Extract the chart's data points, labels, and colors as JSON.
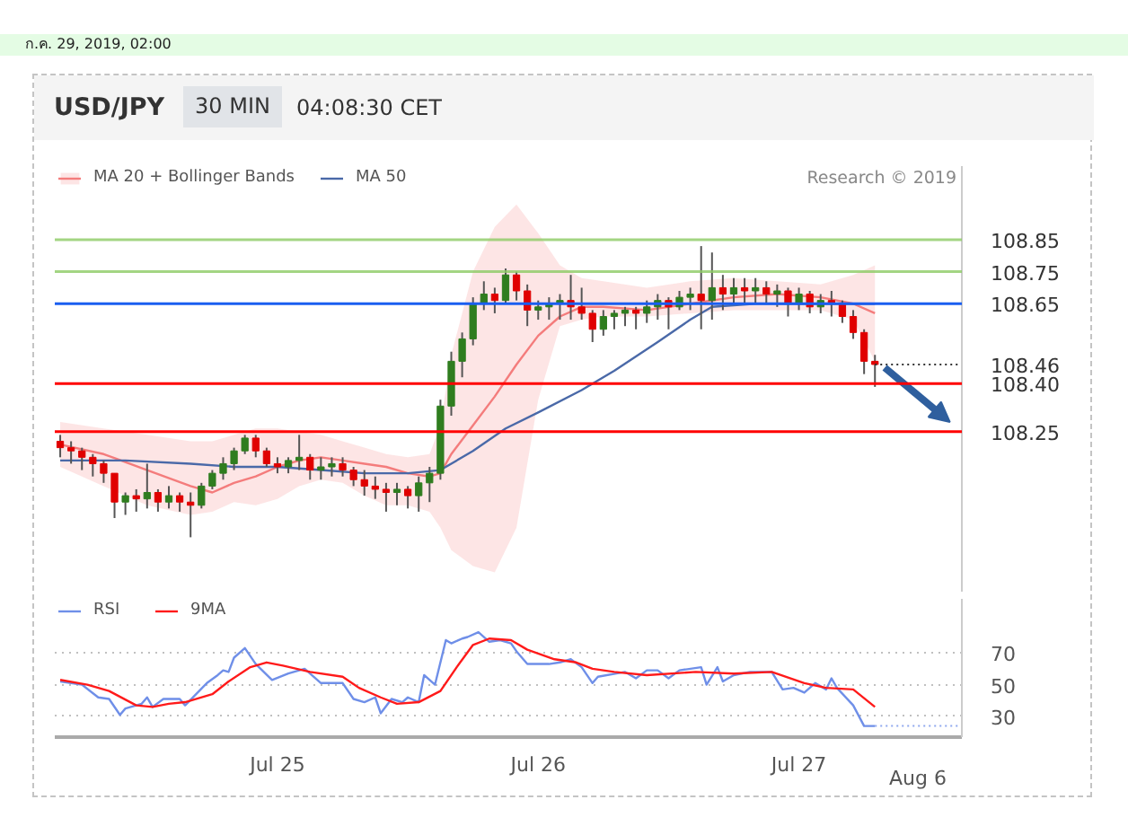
{
  "chart_data": [
    {
      "type": "candlestick",
      "title": "USD/JPY",
      "subtitle": "30 MIN",
      "annotations": [
        "04:08:30 CET",
        "ก.ค. 29, 2019, 02:00",
        "Research © 2019"
      ],
      "x": [
        "2019-07-24T04:00",
        "2019-07-24T05:00",
        "2019-07-24T06:00",
        "2019-07-24T07:00",
        "2019-07-24T08:00",
        "2019-07-24T09:00",
        "2019-07-24T10:00",
        "2019-07-24T11:00",
        "2019-07-24T12:00",
        "2019-07-24T13:00",
        "2019-07-24T14:00",
        "2019-07-24T15:00",
        "2019-07-24T16:00",
        "2019-07-24T17:00",
        "2019-07-24T18:00",
        "2019-07-24T19:00",
        "2019-07-24T20:00",
        "2019-07-24T21:00",
        "2019-07-24T22:00",
        "2019-07-24T23:00",
        "2019-07-25T00:00",
        "2019-07-25T01:00",
        "2019-07-25T02:00",
        "2019-07-25T03:00",
        "2019-07-25T04:00",
        "2019-07-25T05:00",
        "2019-07-25T06:00",
        "2019-07-25T07:00",
        "2019-07-25T08:00",
        "2019-07-25T09:00",
        "2019-07-25T10:00",
        "2019-07-25T11:00",
        "2019-07-25T12:00",
        "2019-07-25T13:00",
        "2019-07-25T14:00",
        "2019-07-25T15:00",
        "2019-07-25T16:00",
        "2019-07-25T17:00",
        "2019-07-25T18:00",
        "2019-07-25T19:00",
        "2019-07-25T20:00",
        "2019-07-25T21:00",
        "2019-07-25T22:00",
        "2019-07-25T23:00",
        "2019-07-26T00:00",
        "2019-07-26T01:00",
        "2019-07-26T02:00",
        "2019-07-26T03:00",
        "2019-07-26T04:00",
        "2019-07-26T05:00",
        "2019-07-26T06:00",
        "2019-07-26T07:00",
        "2019-07-26T08:00",
        "2019-07-26T09:00",
        "2019-07-26T10:00",
        "2019-07-26T11:00",
        "2019-07-26T12:00",
        "2019-07-26T13:00",
        "2019-07-26T14:00",
        "2019-07-26T15:00",
        "2019-07-26T16:00",
        "2019-07-26T17:00",
        "2019-07-26T18:00",
        "2019-07-26T19:00",
        "2019-07-26T20:00",
        "2019-07-26T21:00",
        "2019-07-26T22:00",
        "2019-07-26T23:00",
        "2019-07-27T00:00",
        "2019-07-27T01:00",
        "2019-07-27T02:00",
        "2019-07-27T03:00",
        "2019-07-27T04:00",
        "2019-07-27T05:00",
        "2019-07-27T06:00",
        "2019-07-27T07:00"
      ],
      "ohlc": [
        [
          108.22,
          108.24,
          108.17,
          108.2
        ],
        [
          108.2,
          108.22,
          108.15,
          108.19
        ],
        [
          108.19,
          108.2,
          108.13,
          108.17
        ],
        [
          108.17,
          108.18,
          108.11,
          108.15
        ],
        [
          108.15,
          108.16,
          108.09,
          108.12
        ],
        [
          108.12,
          108.12,
          107.98,
          108.03
        ],
        [
          108.03,
          108.06,
          107.99,
          108.05
        ],
        [
          108.05,
          108.07,
          108.0,
          108.04
        ],
        [
          108.04,
          108.15,
          108.01,
          108.06
        ],
        [
          108.06,
          108.07,
          108.0,
          108.03
        ],
        [
          108.03,
          108.08,
          108.01,
          108.05
        ],
        [
          108.05,
          108.06,
          108.0,
          108.03
        ],
        [
          108.03,
          108.06,
          107.92,
          108.02
        ],
        [
          108.02,
          108.09,
          108.01,
          108.08
        ],
        [
          108.08,
          108.13,
          108.07,
          108.12
        ],
        [
          108.12,
          108.17,
          108.1,
          108.15
        ],
        [
          108.15,
          108.2,
          108.13,
          108.19
        ],
        [
          108.19,
          108.24,
          108.18,
          108.23
        ],
        [
          108.23,
          108.24,
          108.17,
          108.19
        ],
        [
          108.19,
          108.2,
          108.14,
          108.15
        ],
        [
          108.15,
          108.17,
          108.12,
          108.14
        ],
        [
          108.14,
          108.17,
          108.12,
          108.16
        ],
        [
          108.16,
          108.24,
          108.13,
          108.17
        ],
        [
          108.17,
          108.18,
          108.1,
          108.13
        ],
        [
          108.13,
          108.17,
          108.1,
          108.14
        ],
        [
          108.14,
          108.17,
          108.11,
          108.15
        ],
        [
          108.15,
          108.17,
          108.11,
          108.13
        ],
        [
          108.13,
          108.14,
          108.08,
          108.1
        ],
        [
          108.1,
          108.13,
          108.05,
          108.08
        ],
        [
          108.08,
          108.11,
          108.04,
          108.07
        ],
        [
          108.07,
          108.09,
          108.0,
          108.06
        ],
        [
          108.06,
          108.09,
          108.02,
          108.07
        ],
        [
          108.07,
          108.08,
          108.01,
          108.05
        ],
        [
          108.05,
          108.11,
          108.0,
          108.09
        ],
        [
          108.09,
          108.14,
          108.03,
          108.12
        ],
        [
          108.12,
          108.35,
          108.1,
          108.33
        ],
        [
          108.33,
          108.5,
          108.3,
          108.47
        ],
        [
          108.47,
          108.56,
          108.42,
          108.54
        ],
        [
          108.54,
          108.67,
          108.52,
          108.65
        ],
        [
          108.65,
          108.72,
          108.63,
          108.68
        ],
        [
          108.68,
          108.7,
          108.62,
          108.66
        ],
        [
          108.66,
          108.76,
          108.65,
          108.74
        ],
        [
          108.74,
          108.75,
          108.66,
          108.69
        ],
        [
          108.69,
          108.71,
          108.58,
          108.63
        ],
        [
          108.63,
          108.66,
          108.6,
          108.64
        ],
        [
          108.64,
          108.67,
          108.6,
          108.65
        ],
        [
          108.65,
          108.68,
          108.6,
          108.66
        ],
        [
          108.66,
          108.74,
          108.6,
          108.64
        ],
        [
          108.64,
          108.7,
          108.6,
          108.62
        ],
        [
          108.62,
          108.63,
          108.53,
          108.57
        ],
        [
          108.57,
          108.63,
          108.55,
          108.61
        ],
        [
          108.61,
          108.63,
          108.57,
          108.62
        ],
        [
          108.62,
          108.64,
          108.58,
          108.63
        ],
        [
          108.63,
          108.64,
          108.57,
          108.62
        ],
        [
          108.62,
          108.66,
          108.59,
          108.64
        ],
        [
          108.64,
          108.68,
          108.6,
          108.66
        ],
        [
          108.66,
          108.67,
          108.57,
          108.64
        ],
        [
          108.64,
          108.69,
          108.63,
          108.67
        ],
        [
          108.67,
          108.7,
          108.63,
          108.68
        ],
        [
          108.68,
          108.83,
          108.57,
          108.66
        ],
        [
          108.66,
          108.81,
          108.6,
          108.7
        ],
        [
          108.7,
          108.74,
          108.63,
          108.68
        ],
        [
          108.68,
          108.73,
          108.65,
          108.7
        ],
        [
          108.7,
          108.73,
          108.65,
          108.69
        ],
        [
          108.69,
          108.73,
          108.65,
          108.7
        ],
        [
          108.7,
          108.72,
          108.65,
          108.68
        ],
        [
          108.68,
          108.71,
          108.64,
          108.69
        ],
        [
          108.69,
          108.7,
          108.61,
          108.65
        ],
        [
          108.65,
          108.7,
          108.63,
          108.68
        ],
        [
          108.68,
          108.69,
          108.62,
          108.64
        ],
        [
          108.64,
          108.68,
          108.62,
          108.66
        ],
        [
          108.66,
          108.69,
          108.61,
          108.65
        ],
        [
          108.65,
          108.66,
          108.59,
          108.61
        ],
        [
          108.61,
          108.63,
          108.54,
          108.56
        ],
        [
          108.56,
          108.57,
          108.43,
          108.47
        ],
        [
          108.47,
          108.49,
          108.39,
          108.46
        ]
      ],
      "colors": [
        "#e00000",
        "#e00000",
        "#e00000",
        "#e00000",
        "#e00000",
        "#e00000",
        "#2f7d1f",
        "#e00000",
        "#2f7d1f",
        "#e00000",
        "#2f7d1f",
        "#e00000",
        "#e00000",
        "#2f7d1f",
        "#2f7d1f",
        "#2f7d1f",
        "#2f7d1f",
        "#2f7d1f",
        "#e00000",
        "#e00000",
        "#e00000",
        "#2f7d1f",
        "#2f7d1f",
        "#e00000",
        "#2f7d1f",
        "#2f7d1f",
        "#e00000",
        "#e00000",
        "#e00000",
        "#e00000",
        "#e00000",
        "#2f7d1f",
        "#e00000",
        "#2f7d1f",
        "#2f7d1f",
        "#2f7d1f",
        "#2f7d1f",
        "#2f7d1f",
        "#2f7d1f",
        "#2f7d1f",
        "#e00000",
        "#2f7d1f",
        "#e00000",
        "#e00000",
        "#2f7d1f",
        "#2f7d1f",
        "#2f7d1f",
        "#e00000",
        "#e00000",
        "#e00000",
        "#2f7d1f",
        "#2f7d1f",
        "#2f7d1f",
        "#e00000",
        "#2f7d1f",
        "#2f7d1f",
        "#e00000",
        "#2f7d1f",
        "#2f7d1f",
        "#e00000",
        "#2f7d1f",
        "#e00000",
        "#2f7d1f",
        "#e00000",
        "#2f7d1f",
        "#e00000",
        "#2f7d1f",
        "#e00000",
        "#2f7d1f",
        "#e00000",
        "#2f7d1f",
        "#e00000",
        "#e00000",
        "#e00000",
        "#e00000",
        "#e00000"
      ],
      "series": [
        {
          "type": "line",
          "name": "MA 20 + Bollinger Bands",
          "color": "#f47c7c",
          "x": [
            "2019-07-24T04:00",
            "2019-07-24T08:00",
            "2019-07-24T12:00",
            "2019-07-24T16:00",
            "2019-07-24T18:00",
            "2019-07-24T20:00",
            "2019-07-24T22:00",
            "2019-07-25T00:00",
            "2019-07-25T02:00",
            "2019-07-25T04:00",
            "2019-07-25T06:00",
            "2019-07-25T08:00",
            "2019-07-25T10:00",
            "2019-07-25T12:00",
            "2019-07-25T14:00",
            "2019-07-25T15:00",
            "2019-07-25T16:00",
            "2019-07-25T18:00",
            "2019-07-25T20:00",
            "2019-07-25T22:00",
            "2019-07-26T00:00",
            "2019-07-26T02:00",
            "2019-07-26T04:00",
            "2019-07-26T06:00",
            "2019-07-26T10:00",
            "2019-07-26T14:00",
            "2019-07-26T18:00",
            "2019-07-26T22:00",
            "2019-07-27T02:00",
            "2019-07-27T05:00",
            "2019-07-27T07:00"
          ],
          "values": [
            108.21,
            108.18,
            108.13,
            108.08,
            108.06,
            108.09,
            108.11,
            108.14,
            108.16,
            108.17,
            108.16,
            108.15,
            108.14,
            108.12,
            108.11,
            108.12,
            108.18,
            108.27,
            108.36,
            108.46,
            108.55,
            108.61,
            108.64,
            108.64,
            108.63,
            108.65,
            108.67,
            108.68,
            108.67,
            108.65,
            108.62
          ],
          "upper": [
            108.28,
            108.26,
            108.24,
            108.22,
            108.22,
            108.24,
            108.26,
            108.26,
            108.25,
            108.24,
            108.22,
            108.2,
            108.18,
            108.17,
            108.18,
            108.27,
            108.49,
            108.75,
            108.89,
            108.96,
            108.87,
            108.77,
            108.73,
            108.72,
            108.7,
            108.72,
            108.73,
            108.72,
            108.71,
            108.74,
            108.77
          ],
          "lower": [
            108.14,
            108.08,
            108.02,
            107.99,
            108.0,
            108.03,
            108.02,
            108.04,
            108.08,
            108.1,
            108.09,
            108.05,
            108.02,
            108.02,
            108.0,
            107.95,
            107.88,
            107.83,
            107.81,
            107.95,
            108.35,
            108.58,
            108.6,
            108.61,
            108.61,
            108.62,
            108.63,
            108.63,
            108.63,
            108.6,
            108.47
          ]
        },
        {
          "type": "line",
          "name": "MA 50",
          "color": "#4a69a8",
          "x": [
            "2019-07-24T04:00",
            "2019-07-24T10:00",
            "2019-07-24T16:00",
            "2019-07-24T20:00",
            "2019-07-25T00:00",
            "2019-07-25T04:00",
            "2019-07-25T08:00",
            "2019-07-25T12:00",
            "2019-07-25T15:00",
            "2019-07-25T18:00",
            "2019-07-25T21:00",
            "2019-07-26T00:00",
            "2019-07-26T04:00",
            "2019-07-26T07:00",
            "2019-07-26T11:00",
            "2019-07-26T14:00",
            "2019-07-26T16:00",
            "2019-07-26T20:00",
            "2019-07-27T00:00",
            "2019-07-27T04:00",
            "2019-07-27T07:00"
          ],
          "values": [
            108.16,
            108.16,
            108.15,
            108.14,
            108.14,
            108.13,
            108.12,
            108.12,
            108.13,
            108.19,
            108.26,
            108.31,
            108.38,
            108.44,
            108.53,
            108.6,
            108.64,
            108.65,
            108.65,
            108.65,
            108.65
          ]
        }
      ],
      "xlim": [
        "2019-07-24T03:30",
        "2019-07-27T15:00"
      ],
      "ylim": [
        107.75,
        109.08
      ],
      "yticks": [
        108.25,
        {
          "value": 108.4,
          "label": "108.40"
        },
        108.46,
        108.65,
        108.75,
        108.85
      ],
      "tick_labels": "y",
      "legend": "top left",
      "ref_lines": [
        {
          "axis": "y",
          "value": 108.85,
          "color": "#8ccb64",
          "line_style": "solid"
        },
        {
          "axis": "y",
          "value": 108.75,
          "color": "#8ccb64",
          "line_style": "solid"
        },
        {
          "axis": "y",
          "value": 108.65,
          "color": "#1a5ef0",
          "line_style": "solid"
        },
        {
          "axis": "y",
          "value": 108.46,
          "color": "#333333",
          "line_style": "dotted"
        },
        {
          "axis": "y",
          "value": 108.4,
          "color": "#ff0000",
          "line_style": "solid"
        },
        {
          "axis": "y",
          "value": 108.25,
          "color": "#ff0000",
          "line_style": "solid"
        }
      ]
    },
    {
      "type": "line",
      "annotations": [
        "Aug 6"
      ],
      "series": [
        {
          "name": "RSI",
          "color": "#6f8fe8",
          "x": [
            "2019-07-24T04:00",
            "2019-07-24T06:00",
            "2019-07-24T07:30",
            "2019-07-24T08:30",
            "2019-07-24T09:30",
            "2019-07-24T10:00",
            "2019-07-24T11:30",
            "2019-07-24T12:00",
            "2019-07-24T12:30",
            "2019-07-24T13:30",
            "2019-07-24T15:00",
            "2019-07-24T15:30",
            "2019-07-24T17:30",
            "2019-07-24T18:30",
            "2019-07-24T19:00",
            "2019-07-24T19:30",
            "2019-07-24T20:00",
            "2019-07-24T21:00",
            "2019-07-24T22:00",
            "2019-07-24T23:30",
            "2019-07-25T01:00",
            "2019-07-25T02:30",
            "2019-07-25T04:00",
            "2019-07-25T06:00",
            "2019-07-25T07:00",
            "2019-07-25T08:00",
            "2019-07-25T09:00",
            "2019-07-25T09:30",
            "2019-07-25T10:30",
            "2019-07-25T11:30",
            "2019-07-25T12:00",
            "2019-07-25T13:00",
            "2019-07-25T13:30",
            "2019-07-25T14:30",
            "2019-07-25T15:30",
            "2019-07-25T16:00",
            "2019-07-25T17:00",
            "2019-07-25T17:30",
            "2019-07-25T18:30",
            "2019-07-25T19:30",
            "2019-07-25T20:30",
            "2019-07-25T21:30",
            "2019-07-25T22:00",
            "2019-07-25T23:00",
            "2019-07-26T01:00",
            "2019-07-26T02:00",
            "2019-07-26T03:00",
            "2019-07-26T04:00",
            "2019-07-26T05:00",
            "2019-07-26T05:30",
            "2019-07-26T08:00",
            "2019-07-26T09:00",
            "2019-07-26T10:00",
            "2019-07-26T11:00",
            "2019-07-26T12:00",
            "2019-07-26T13:00",
            "2019-07-26T15:00",
            "2019-07-26T15:30",
            "2019-07-26T16:30",
            "2019-07-26T17:00",
            "2019-07-26T18:00",
            "2019-07-26T19:30",
            "2019-07-26T21:30",
            "2019-07-26T22:30",
            "2019-07-26T23:30",
            "2019-07-27T00:30",
            "2019-07-27T01:30",
            "2019-07-27T02:30",
            "2019-07-27T03:00",
            "2019-07-27T03:30",
            "2019-07-27T05:00",
            "2019-07-27T06:00",
            "2019-07-27T07:00"
          ],
          "values": [
            52,
            50,
            42,
            41,
            31,
            35,
            38,
            42,
            36,
            41,
            41,
            37,
            51,
            56,
            59,
            58,
            67,
            73,
            63,
            53,
            57,
            60,
            51,
            51,
            41,
            39,
            42,
            32,
            41,
            39,
            42,
            39,
            56,
            50,
            78,
            76,
            79,
            80,
            83,
            77,
            78,
            76,
            71,
            63,
            63,
            64,
            66,
            61,
            51,
            55,
            58,
            54,
            59,
            59,
            54,
            59,
            61,
            50,
            61,
            52,
            56,
            58,
            58,
            47,
            48,
            45,
            51,
            47,
            54,
            48,
            37,
            24,
            24
          ]
        },
        {
          "name": "9MA",
          "color": "#ff1a1a",
          "x": [
            "2019-07-24T04:00",
            "2019-07-24T06:30",
            "2019-07-24T08:30",
            "2019-07-24T11:00",
            "2019-07-24T12:30",
            "2019-07-24T14:00",
            "2019-07-24T15:30",
            "2019-07-24T18:00",
            "2019-07-24T19:30",
            "2019-07-24T21:30",
            "2019-07-24T23:00",
            "2019-07-25T00:30",
            "2019-07-25T03:00",
            "2019-07-25T06:00",
            "2019-07-25T07:30",
            "2019-07-25T09:30",
            "2019-07-25T11:00",
            "2019-07-25T13:00",
            "2019-07-25T15:00",
            "2019-07-25T16:30",
            "2019-07-25T18:00",
            "2019-07-25T19:30",
            "2019-07-25T21:30",
            "2019-07-25T23:00",
            "2019-07-26T01:30",
            "2019-07-26T03:30",
            "2019-07-26T05:00",
            "2019-07-26T07:00",
            "2019-07-26T10:00",
            "2019-07-26T14:30",
            "2019-07-26T18:00",
            "2019-07-26T21:30",
            "2019-07-27T00:30",
            "2019-07-27T02:30",
            "2019-07-27T05:00",
            "2019-07-27T07:00"
          ],
          "values": [
            53,
            50,
            46,
            37,
            36,
            38,
            39,
            44,
            52,
            61,
            64,
            62,
            58,
            55,
            48,
            42,
            38,
            39,
            46,
            61,
            75,
            79,
            78,
            72,
            66,
            64,
            60,
            58,
            56,
            58,
            57,
            58,
            51,
            48,
            47,
            36
          ]
        }
      ],
      "xlim": [
        "2019-07-24T03:30",
        "2019-07-27T15:00"
      ],
      "xticks": [
        {
          "value": "2019-07-25",
          "label": "Jul 25"
        },
        {
          "value": "2019-07-26",
          "label": "Jul 26"
        },
        {
          "value": "2019-07-27",
          "label": "Jul 27"
        }
      ],
      "ylim": [
        17,
        104
      ],
      "yticks": [
        30,
        50,
        70
      ],
      "grid": "y",
      "legend": "top left",
      "ref_lines": [
        {
          "axis": "y",
          "value": 24,
          "color": "#8fa8ee",
          "line_style": "dotted"
        }
      ]
    }
  ]
}
